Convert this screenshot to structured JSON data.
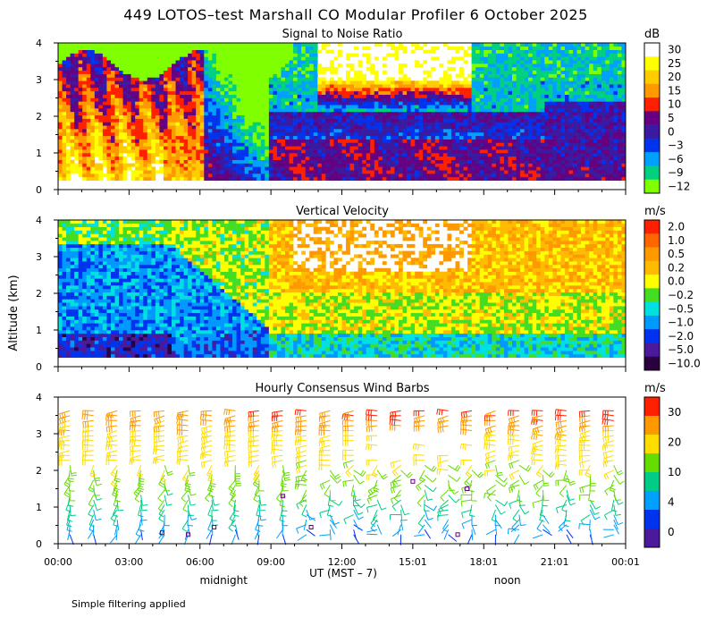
{
  "title": "449 LOTOS–test Marshall CO Modular Profiler  6 October 2025",
  "ylabel": "Altitude (km)",
  "xlabel": "UT  (MST – 7)",
  "footnote": "Simple filtering applied",
  "chart_data": {
    "type": "heatmap",
    "x_ticks": [
      "00:00",
      "03:00",
      "06:00",
      "09:00",
      "12:00",
      "15:01",
      "18:01",
      "21:01",
      "00:01"
    ],
    "x_hours": [
      0,
      3,
      6,
      9,
      12,
      15,
      18,
      21,
      24
    ],
    "x_annotations": [
      {
        "label": "midnight",
        "hour": 7
      },
      {
        "label": "noon",
        "hour": 19
      }
    ],
    "y_ticks": [
      0,
      1,
      2,
      3,
      4
    ],
    "ylim": [
      0,
      4
    ],
    "xlim": [
      0,
      24
    ],
    "panels": [
      {
        "title": "Signal to Noise Ratio",
        "unit": "dB",
        "type": "heatmap",
        "levels": [
          "30",
          "25",
          "20",
          "15",
          "10",
          "5",
          "0",
          "−3",
          "−6",
          "−9",
          "−12"
        ],
        "colors": [
          "#ffffff",
          "#ffff00",
          "#ffcc00",
          "#ff9900",
          "#ff2000",
          "#660080",
          "#3a1aa0",
          "#0033ee",
          "#00a0ff",
          "#00d080",
          "#80ff00"
        ]
      },
      {
        "title": "Vertical Velocity",
        "unit": "m/s",
        "type": "heatmap",
        "levels": [
          "2.0",
          "1.0",
          "0.5",
          "0.2",
          "0.0",
          "−0.2",
          "−0.5",
          "−1.0",
          "−2.0",
          "−5.0",
          "−10.0"
        ],
        "colors": [
          "#ff2000",
          "#ff6600",
          "#ff9900",
          "#ffbb00",
          "#ffff00",
          "#44dd22",
          "#00e0e0",
          "#0099ff",
          "#0033ee",
          "#4a1a9a",
          "#2a0040"
        ]
      },
      {
        "title": "Hourly Consensus Wind Barbs",
        "unit": "m/s",
        "type": "wind_barbs",
        "levels": [
          "30",
          "20",
          "10",
          "4",
          "0"
        ],
        "colors": [
          "#ff2000",
          "#ff9900",
          "#ffdd00",
          "#66dd00",
          "#00cc88",
          "#00a0ff",
          "#0033ee",
          "#4a1a9a"
        ]
      }
    ]
  }
}
